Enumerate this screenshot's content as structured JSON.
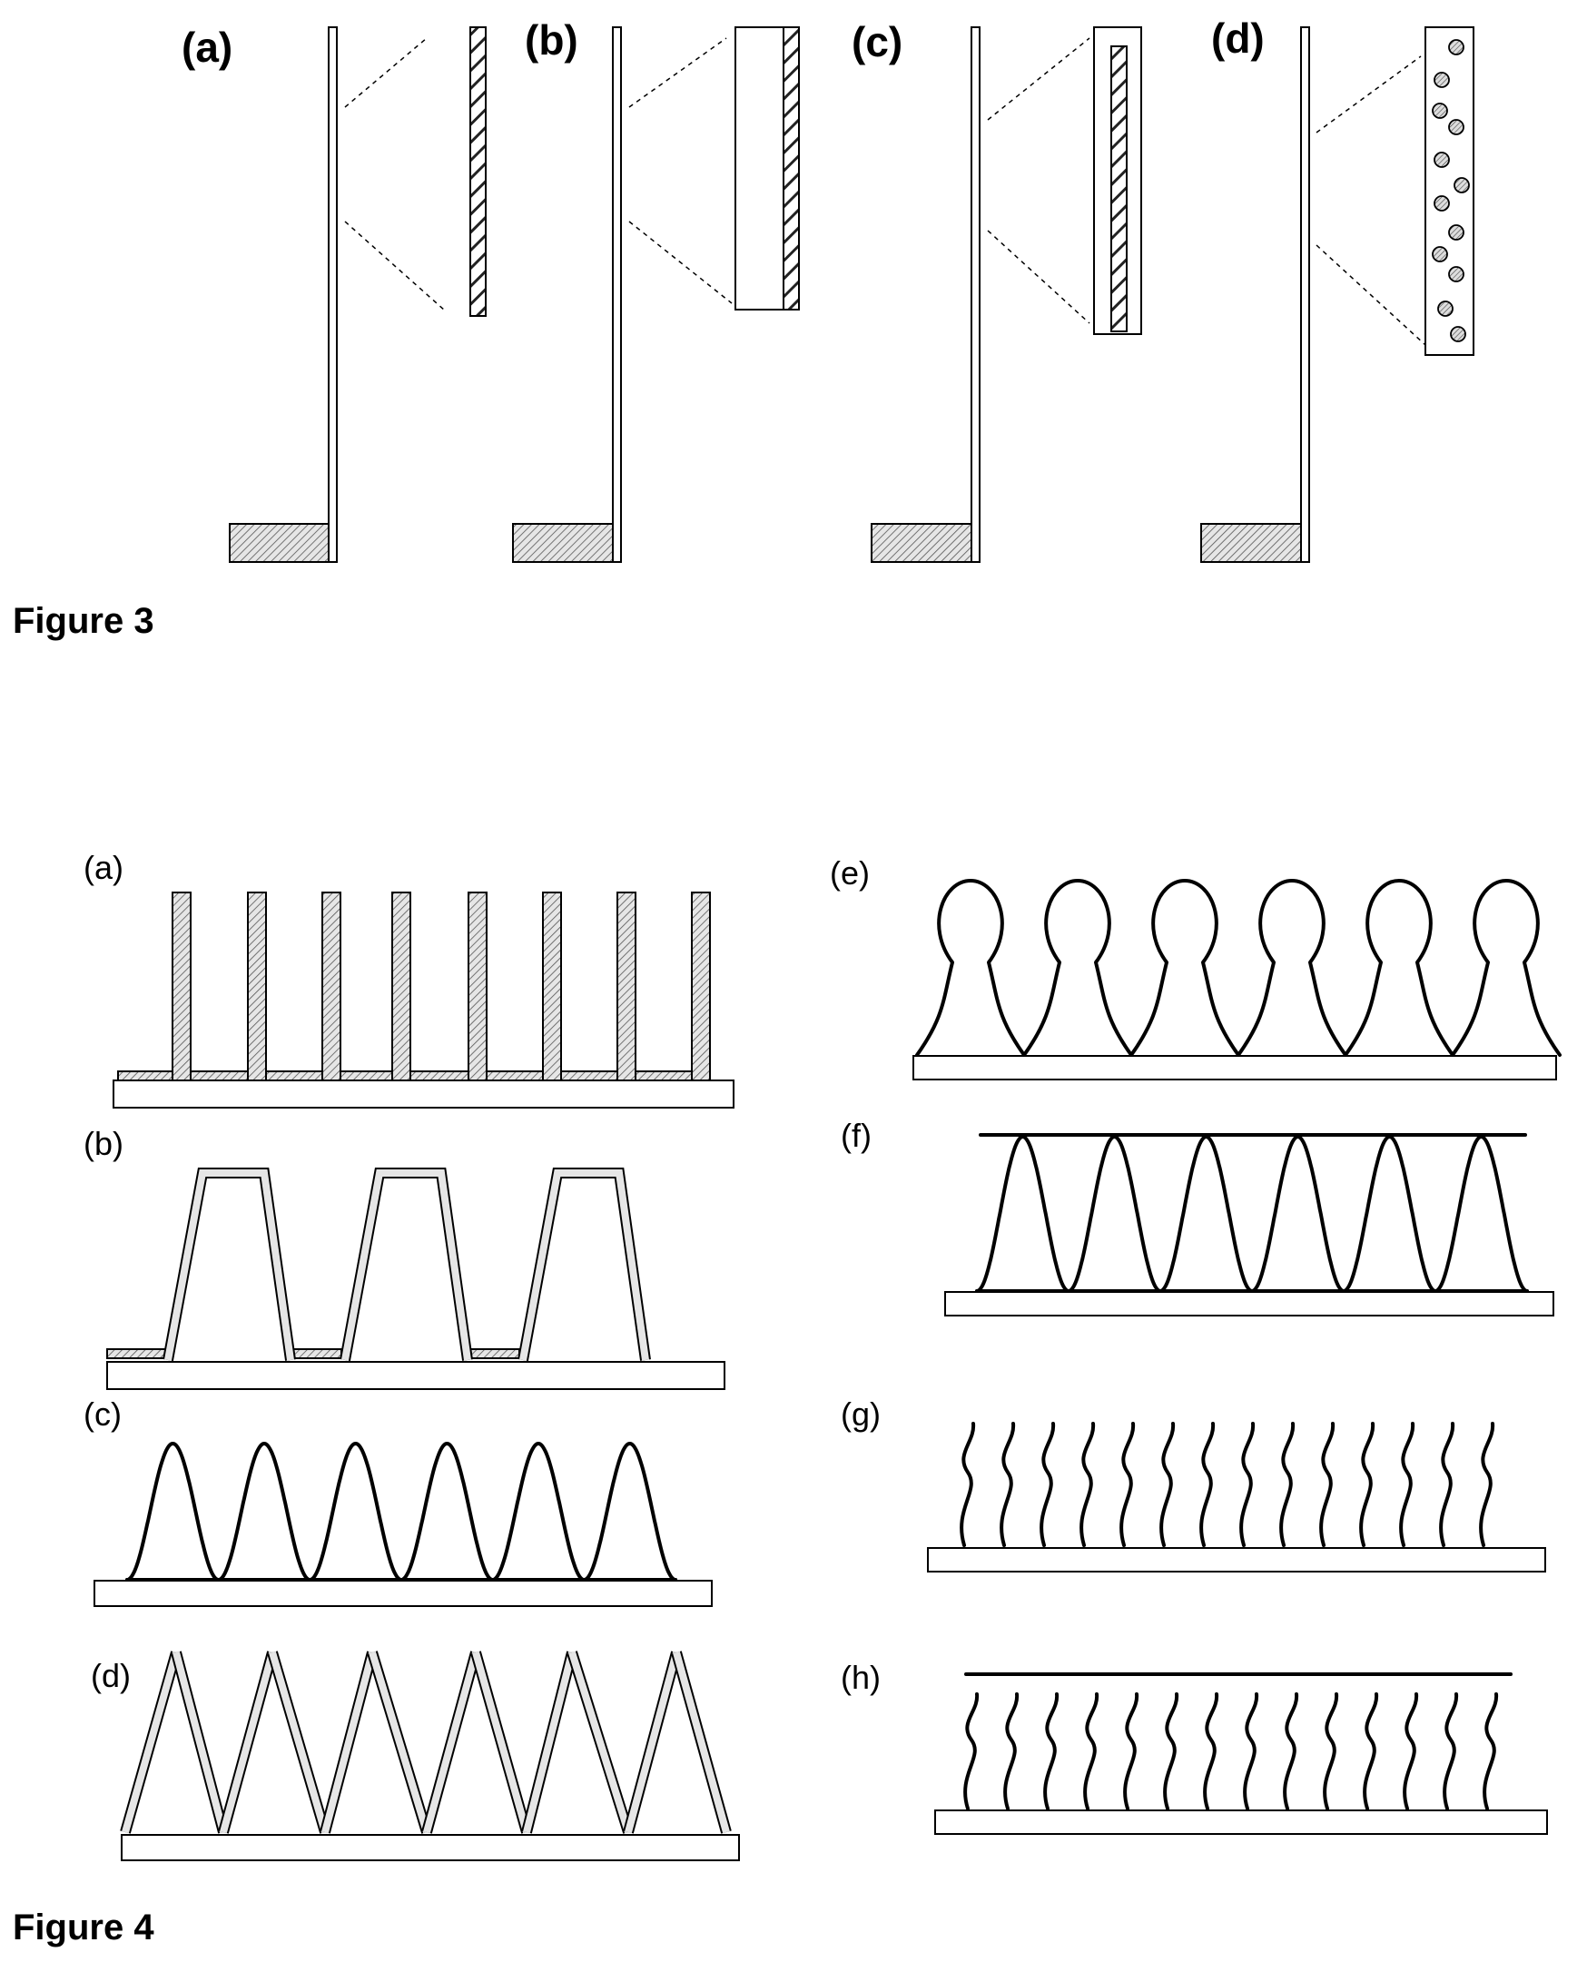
{
  "figure3": {
    "caption": "Figure 3",
    "panels": [
      {
        "id": "a",
        "label": "(a)"
      },
      {
        "id": "b",
        "label": "(b)"
      },
      {
        "id": "c",
        "label": "(c)"
      },
      {
        "id": "d",
        "label": "(d)"
      }
    ]
  },
  "figure4": {
    "caption": "Figure 4",
    "panels": [
      {
        "id": "a",
        "label": "(a)"
      },
      {
        "id": "b",
        "label": "(b)"
      },
      {
        "id": "c",
        "label": "(c)"
      },
      {
        "id": "d",
        "label": "(d)"
      },
      {
        "id": "e",
        "label": "(e)"
      },
      {
        "id": "f",
        "label": "(f)"
      },
      {
        "id": "g",
        "label": "(g)"
      },
      {
        "id": "h",
        "label": "(h)"
      }
    ]
  }
}
